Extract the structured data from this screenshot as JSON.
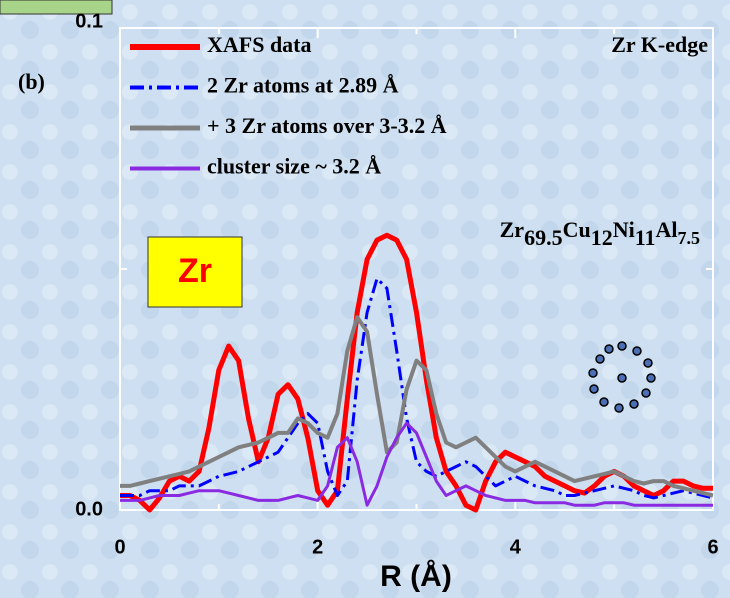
{
  "chart_data": {
    "type": "line",
    "panel_label": "(b)",
    "edge_label": "Zr K-edge",
    "formula": [
      "Zr",
      "69.5",
      "Cu",
      "12",
      "Ni",
      "11",
      "Al",
      "7.5"
    ],
    "element_box": "Zr",
    "x_label": "R (Å)",
    "x": [
      0,
      0.1,
      0.2,
      0.3,
      0.4,
      0.5,
      0.6,
      0.7,
      0.8,
      0.9,
      1,
      1.1,
      1.2,
      1.3,
      1.4,
      1.5,
      1.6,
      1.7,
      1.8,
      1.9,
      2,
      2.1,
      2.2,
      2.3,
      2.4,
      2.5,
      2.6,
      2.7,
      2.8,
      2.9,
      3,
      3.1,
      3.2,
      3.3,
      3.4,
      3.5,
      3.6,
      3.7,
      3.8,
      3.9,
      4,
      4.1,
      4.2,
      4.3,
      4.4,
      4.5,
      4.6,
      4.7,
      4.8,
      4.9,
      5,
      5.1,
      5.2,
      5.3,
      5.4,
      5.5,
      5.6,
      5.7,
      5.8,
      5.9,
      6
    ],
    "series": [
      {
        "name": "XAFS data",
        "color": "#ff0000",
        "dash": "solid",
        "width": 5,
        "values": [
          0.003,
          0.003,
          0.002,
          0,
          0.0025,
          0.006,
          0.007,
          0.006,
          0.008,
          0.017,
          0.029,
          0.034,
          0.031,
          0.019,
          0.01,
          0.015,
          0.024,
          0.026,
          0.023,
          0.015,
          0.004,
          0.001,
          0.004,
          0.023,
          0.041,
          0.052,
          0.056,
          0.057,
          0.056,
          0.052,
          0.041,
          0.027,
          0.015,
          0.008,
          0.005,
          0.001,
          0,
          0.006,
          0.01,
          0.012,
          0.011,
          0.01,
          0.009,
          0.007,
          0.006,
          0.005,
          0.004,
          0.0035,
          0.005,
          0.007,
          0.008,
          0.007,
          0.005,
          0.004,
          0.003,
          0.004,
          0.006,
          0.006,
          0.005,
          0.0045,
          0.0045
        ]
      },
      {
        "name": "2 Zr atoms at 2.89 Å",
        "color": "#0000ff",
        "dash": "dashdot",
        "width": 3,
        "values": [
          0.003,
          0.003,
          0.003,
          0.004,
          0.004,
          0.004,
          0.005,
          0.005,
          0.005,
          0.006,
          0.007,
          0.0075,
          0.008,
          0.009,
          0.01,
          0.011,
          0.012,
          0.015,
          0.018,
          0.02,
          0.018,
          0.008,
          0.003,
          0.006,
          0.027,
          0.041,
          0.048,
          0.046,
          0.033,
          0.019,
          0.01,
          0.008,
          0.007,
          0.008,
          0.009,
          0.01,
          0.009,
          0.007,
          0.005,
          0.006,
          0.007,
          0.006,
          0.005,
          0.0045,
          0.004,
          0.003,
          0.003,
          0.0035,
          0.004,
          0.0045,
          0.005,
          0.0045,
          0.004,
          0.003,
          0.0025,
          0.003,
          0.0035,
          0.004,
          0.0035,
          0.003,
          0.0025
        ]
      },
      {
        "name": "+ 3 Zr atoms over 3-3.2 Å",
        "color": "#808080",
        "dash": "solid",
        "width": 4,
        "values": [
          0.005,
          0.005,
          0.0055,
          0.006,
          0.0065,
          0.007,
          0.0075,
          0.008,
          0.009,
          0.01,
          0.011,
          0.012,
          0.013,
          0.0135,
          0.014,
          0.015,
          0.016,
          0.016,
          0.019,
          0.018,
          0.016,
          0.015,
          0.02,
          0.033,
          0.04,
          0.037,
          0.024,
          0.012,
          0.014,
          0.025,
          0.031,
          0.029,
          0.02,
          0.014,
          0.013,
          0.014,
          0.015,
          0.013,
          0.011,
          0.009,
          0.008,
          0.009,
          0.01,
          0.009,
          0.008,
          0.007,
          0.006,
          0.0065,
          0.007,
          0.0075,
          0.008,
          0.007,
          0.006,
          0.0055,
          0.006,
          0.006,
          0.005,
          0.0045,
          0.004,
          0.0035,
          0.003
        ]
      },
      {
        "name": "cluster size ~ 3.2 Å",
        "color": "#8a2be2",
        "dash": "solid",
        "width": 3,
        "values": [
          0.002,
          0.002,
          0.002,
          0.0025,
          0.003,
          0.003,
          0.003,
          0.0035,
          0.004,
          0.004,
          0.004,
          0.0035,
          0.003,
          0.0025,
          0.002,
          0.002,
          0.002,
          0.0025,
          0.003,
          0.0025,
          0.002,
          0.005,
          0.013,
          0.015,
          0.01,
          0.001,
          0.005,
          0.011,
          0.015,
          0.018,
          0.016,
          0.011,
          0.006,
          0.003,
          0.004,
          0.005,
          0.004,
          0.003,
          0.0025,
          0.002,
          0.002,
          0.002,
          0.0015,
          0.0015,
          0.0015,
          0.0015,
          0.001,
          0.001,
          0.001,
          0.0015,
          0.0015,
          0.0015,
          0.001,
          0.001,
          0.001,
          0.001,
          0.001,
          0.001,
          0.001,
          0.001,
          0.001
        ]
      }
    ],
    "xlim": [
      0,
      6
    ],
    "xticks": [
      0,
      2,
      4,
      6
    ],
    "minor_xticks": [
      1,
      3,
      5
    ],
    "ylim": [
      0,
      0.1
    ],
    "yticks": [
      {
        "value": 0,
        "label": "0.0"
      },
      0.1
    ],
    "minor_yticks": [
      0.05
    ],
    "legend": "upper left"
  }
}
